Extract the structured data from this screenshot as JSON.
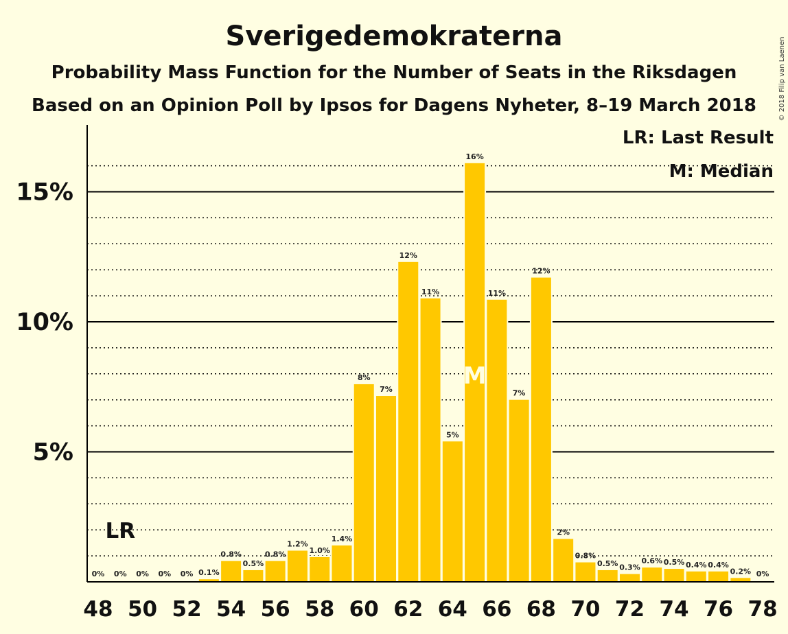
{
  "header": {
    "title": "Sverigedemokraterna",
    "subtitle": "Probability Mass Function for the Number of Seats in the Riksdagen",
    "subtitle2": "Based on an Opinion Poll by Ipsos for Dagens Nyheter, 8–19 March 2018",
    "copyright": "© 2018 Filip van Laenen"
  },
  "legend": {
    "last_result": "LR: Last Result",
    "median": "M: Median"
  },
  "chart_data": {
    "type": "bar",
    "x": [
      48,
      49,
      50,
      51,
      52,
      53,
      54,
      55,
      56,
      57,
      58,
      59,
      60,
      61,
      62,
      63,
      64,
      65,
      66,
      67,
      68,
      69,
      70,
      71,
      72,
      73,
      74,
      75,
      76,
      77,
      78
    ],
    "values": [
      0,
      0,
      0,
      0,
      0,
      0.1,
      0.8,
      0.45,
      0.8,
      1.2,
      0.95,
      1.4,
      7.6,
      7.15,
      12.3,
      10.9,
      5.4,
      16.1,
      10.85,
      7.0,
      11.7,
      1.65,
      0.75,
      0.45,
      0.3,
      0.55,
      0.5,
      0.4,
      0.4,
      0.15,
      0
    ],
    "data_labels": [
      "0%",
      "0%",
      "0%",
      "0%",
      "0%",
      "0.1%",
      "0.8%",
      "0.5%",
      "0.8%",
      "1.2%",
      "1.0%",
      "1.4%",
      "8%",
      "7%",
      "12%",
      "11%",
      "5%",
      "16%",
      "11%",
      "7%",
      "12%",
      "2%",
      "0.8%",
      "0.5%",
      "0.3%",
      "0.6%",
      "0.5%",
      "0.4%",
      "0.4%",
      "0.2%",
      "0%"
    ],
    "x_ticks": [
      "48",
      "50",
      "52",
      "54",
      "56",
      "58",
      "60",
      "62",
      "64",
      "66",
      "68",
      "70",
      "72",
      "74",
      "76",
      "78"
    ],
    "y_ticks": [
      "5%",
      "10%",
      "15%"
    ],
    "y_tick_values": [
      5,
      10,
      15
    ],
    "ylim": [
      0,
      17.5
    ],
    "minor_grid_step": 1,
    "last_result": {
      "x": 49,
      "label": "LR"
    },
    "median": {
      "x": 65,
      "label": "M"
    },
    "colors": {
      "bar": "#FFC800",
      "background": "#FFFEE2",
      "axis": "#000000"
    }
  }
}
